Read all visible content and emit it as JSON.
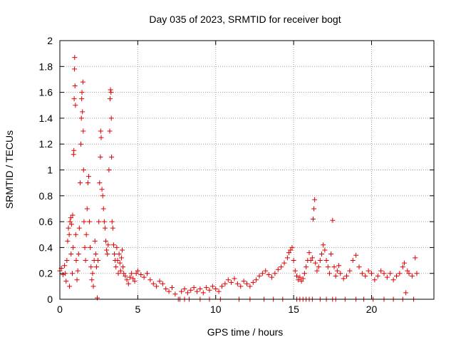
{
  "chart_data": {
    "type": "scatter",
    "title": "Day 035 of 2023, SRMTID for receiver bogt",
    "xlabel": "GPS time / hours",
    "ylabel": "SRMTID / TECUs",
    "xlim": [
      0,
      24
    ],
    "ylim": [
      0,
      2
    ],
    "x_ticks": [
      0,
      5,
      10,
      15,
      20
    ],
    "x_tick_labels": [
      "0",
      "5",
      "10",
      "15",
      "20"
    ],
    "y_ticks": [
      0,
      0.2,
      0.4,
      0.6,
      0.8,
      1.0,
      1.2,
      1.4,
      1.6,
      1.8,
      2.0
    ],
    "y_tick_labels": [
      "0",
      "0.2",
      "0.4",
      "0.6",
      "0.8",
      "1",
      "1.2",
      "1.4",
      "1.6",
      "1.8",
      "2"
    ],
    "grid": true,
    "marker": "+",
    "color": "#e00000",
    "series": [
      {
        "name": "SRMTID",
        "points": [
          [
            0.0,
            0.22
          ],
          [
            0.1,
            0.24
          ],
          [
            0.2,
            0.19
          ],
          [
            0.3,
            0.26
          ],
          [
            0.35,
            0.2
          ],
          [
            0.4,
            0.14
          ],
          [
            0.45,
            0.3
          ],
          [
            0.5,
            0.45
          ],
          [
            0.55,
            0.55
          ],
          [
            0.6,
            0.5
          ],
          [
            0.62,
            0.1
          ],
          [
            0.65,
            0.6
          ],
          [
            0.7,
            0.63
          ],
          [
            0.72,
            0.35
          ],
          [
            0.75,
            0.58
          ],
          [
            0.8,
            0.2
          ],
          [
            0.82,
            0.65
          ],
          [
            0.85,
            0.4
          ],
          [
            0.88,
            1.12
          ],
          [
            0.9,
            1.15
          ],
          [
            0.92,
            1.55
          ],
          [
            0.94,
            1.78
          ],
          [
            0.95,
            1.87
          ],
          [
            0.97,
            1.65
          ],
          [
            1.0,
            1.5
          ],
          [
            1.02,
            0.5
          ],
          [
            1.05,
            0.3
          ],
          [
            1.1,
            0.15
          ],
          [
            1.15,
            0.22
          ],
          [
            1.2,
            0.35
          ],
          [
            1.25,
            0.55
          ],
          [
            1.3,
            0.9
          ],
          [
            1.35,
            1.2
          ],
          [
            1.38,
            1.4
          ],
          [
            1.4,
            1.55
          ],
          [
            1.42,
            1.6
          ],
          [
            1.45,
            1.45
          ],
          [
            1.48,
            1.68
          ],
          [
            1.5,
            1.3
          ],
          [
            1.52,
            1.0
          ],
          [
            1.55,
            0.6
          ],
          [
            1.6,
            0.4
          ],
          [
            1.65,
            0.3
          ],
          [
            1.7,
            0.5
          ],
          [
            1.75,
            0.7
          ],
          [
            1.8,
            0.9
          ],
          [
            1.85,
            0.95
          ],
          [
            1.9,
            0.6
          ],
          [
            1.95,
            0.4
          ],
          [
            2.0,
            0.25
          ],
          [
            2.05,
            0.15
          ],
          [
            2.1,
            0.2
          ],
          [
            2.15,
            0.1
          ],
          [
            2.2,
            0.3
          ],
          [
            2.25,
            0.45
          ],
          [
            2.3,
            0.35
          ],
          [
            2.35,
            0.25
          ],
          [
            2.4,
            0.01
          ],
          [
            2.45,
            0.3
          ],
          [
            2.5,
            0.6
          ],
          [
            2.55,
            0.9
          ],
          [
            2.6,
            1.1
          ],
          [
            2.62,
            1.3
          ],
          [
            2.65,
            1.25
          ],
          [
            2.7,
            0.85
          ],
          [
            2.75,
            0.8
          ],
          [
            2.8,
            0.7
          ],
          [
            2.85,
            0.6
          ],
          [
            2.9,
            0.55
          ],
          [
            2.95,
            0.45
          ],
          [
            3.0,
            0.38
          ],
          [
            3.05,
            0.35
          ],
          [
            3.1,
            0.42
          ],
          [
            3.15,
            1.0
          ],
          [
            3.2,
            1.3
          ],
          [
            3.22,
            1.55
          ],
          [
            3.25,
            1.62
          ],
          [
            3.28,
            1.6
          ],
          [
            3.3,
            1.4
          ],
          [
            3.32,
            1.1
          ],
          [
            3.35,
            0.6
          ],
          [
            3.4,
            0.55
          ],
          [
            3.45,
            0.42
          ],
          [
            3.5,
            0.35
          ],
          [
            3.55,
            0.3
          ],
          [
            3.6,
            0.25
          ],
          [
            3.65,
            0.4
          ],
          [
            3.7,
            0.3
          ],
          [
            3.75,
            0.2
          ],
          [
            3.8,
            0.35
          ],
          [
            3.85,
            0.28
          ],
          [
            3.9,
            0.22
          ],
          [
            3.95,
            0.32
          ],
          [
            4.0,
            0.38
          ],
          [
            4.05,
            0.25
          ],
          [
            4.1,
            0.2
          ],
          [
            4.2,
            0.18
          ],
          [
            4.3,
            0.15
          ],
          [
            4.4,
            0.12
          ],
          [
            4.5,
            0.17
          ],
          [
            4.6,
            0.2
          ],
          [
            4.7,
            0.16
          ],
          [
            4.8,
            0.14
          ],
          [
            4.9,
            0.2
          ],
          [
            5.0,
            0.22
          ],
          [
            5.2,
            0.19
          ],
          [
            5.4,
            0.17
          ],
          [
            5.6,
            0.2
          ],
          [
            5.8,
            0.15
          ],
          [
            6.0,
            0.12
          ],
          [
            6.2,
            0.1
          ],
          [
            6.4,
            0.14
          ],
          [
            6.6,
            0.12
          ],
          [
            6.8,
            0.08
          ],
          [
            7.0,
            0.06
          ],
          [
            7.2,
            0.09
          ],
          [
            7.4,
            0.04
          ],
          [
            7.6,
            0.0
          ],
          [
            7.8,
            0.06
          ],
          [
            8.0,
            0.08
          ],
          [
            8.2,
            0.05
          ],
          [
            8.4,
            0.07
          ],
          [
            8.6,
            0.09
          ],
          [
            8.8,
            0.06
          ],
          [
            9.0,
            0.08
          ],
          [
            9.2,
            0.05
          ],
          [
            9.4,
            0.09
          ],
          [
            9.6,
            0.07
          ],
          [
            9.8,
            0.1
          ],
          [
            10.0,
            0.08
          ],
          [
            10.2,
            0.06
          ],
          [
            10.4,
            0.1
          ],
          [
            10.6,
            0.12
          ],
          [
            10.8,
            0.15
          ],
          [
            11.0,
            0.13
          ],
          [
            11.2,
            0.16
          ],
          [
            11.4,
            0.12
          ],
          [
            11.6,
            0.1
          ],
          [
            11.8,
            0.14
          ],
          [
            12.0,
            0.12
          ],
          [
            12.2,
            0.1
          ],
          [
            12.4,
            0.13
          ],
          [
            12.6,
            0.15
          ],
          [
            12.8,
            0.18
          ],
          [
            13.0,
            0.2
          ],
          [
            13.2,
            0.22
          ],
          [
            13.4,
            0.19
          ],
          [
            13.6,
            0.17
          ],
          [
            13.8,
            0.2
          ],
          [
            14.0,
            0.23
          ],
          [
            14.2,
            0.25
          ],
          [
            14.4,
            0.28
          ],
          [
            14.6,
            0.32
          ],
          [
            14.7,
            0.36
          ],
          [
            14.8,
            0.38
          ],
          [
            14.9,
            0.4
          ],
          [
            15.0,
            0.3
          ],
          [
            15.1,
            0.22
          ],
          [
            15.2,
            0.18
          ],
          [
            15.3,
            0.15
          ],
          [
            15.4,
            0.17
          ],
          [
            15.5,
            0.14
          ],
          [
            15.6,
            0.16
          ],
          [
            15.7,
            0.2
          ],
          [
            15.8,
            0.25
          ],
          [
            15.9,
            0.3
          ],
          [
            16.0,
            0.36
          ],
          [
            16.1,
            0.3
          ],
          [
            16.2,
            0.32
          ],
          [
            16.25,
            0.62
          ],
          [
            16.3,
            0.7
          ],
          [
            16.35,
            0.77
          ],
          [
            16.4,
            0.28
          ],
          [
            16.5,
            0.22
          ],
          [
            16.6,
            0.25
          ],
          [
            16.7,
            0.3
          ],
          [
            16.8,
            0.35
          ],
          [
            16.9,
            0.42
          ],
          [
            17.0,
            0.38
          ],
          [
            17.1,
            0.3
          ],
          [
            17.2,
            0.25
          ],
          [
            17.3,
            0.2
          ],
          [
            17.4,
            0.35
          ],
          [
            17.5,
            0.61
          ],
          [
            17.6,
            0.25
          ],
          [
            17.7,
            0.18
          ],
          [
            17.8,
            0.22
          ],
          [
            17.9,
            0.26
          ],
          [
            18.0,
            0.2
          ],
          [
            18.2,
            0.16
          ],
          [
            18.4,
            0.18
          ],
          [
            18.6,
            0.22
          ],
          [
            18.8,
            0.3
          ],
          [
            19.0,
            0.34
          ],
          [
            19.2,
            0.25
          ],
          [
            19.4,
            0.2
          ],
          [
            19.6,
            0.18
          ],
          [
            19.8,
            0.22
          ],
          [
            20.0,
            0.2
          ],
          [
            20.2,
            0.15
          ],
          [
            20.4,
            0.18
          ],
          [
            20.6,
            0.22
          ],
          [
            20.8,
            0.2
          ],
          [
            21.0,
            0.17
          ],
          [
            21.2,
            0.2
          ],
          [
            21.4,
            0.15
          ],
          [
            21.6,
            0.18
          ],
          [
            21.8,
            0.2
          ],
          [
            22.0,
            0.25
          ],
          [
            22.1,
            0.28
          ],
          [
            22.2,
            0.05
          ],
          [
            22.3,
            0.22
          ],
          [
            22.4,
            0.2
          ],
          [
            22.6,
            0.18
          ],
          [
            22.8,
            0.32
          ],
          [
            22.9,
            0.2
          ],
          [
            7.7,
            0.0
          ],
          [
            8.0,
            0.0
          ],
          [
            8.3,
            0.0
          ],
          [
            9.0,
            0.0
          ],
          [
            9.6,
            0.0
          ],
          [
            10.3,
            0.0
          ],
          [
            11.5,
            0.0
          ],
          [
            12.2,
            0.0
          ],
          [
            13.1,
            0.0
          ],
          [
            13.7,
            0.0
          ],
          [
            14.3,
            0.0
          ],
          [
            15.2,
            0.0
          ],
          [
            15.4,
            0.0
          ],
          [
            15.6,
            0.0
          ],
          [
            15.8,
            0.0
          ],
          [
            16.0,
            0.0
          ],
          [
            16.2,
            0.0
          ],
          [
            16.7,
            0.0
          ],
          [
            17.1,
            0.0
          ],
          [
            17.5,
            0.0
          ],
          [
            17.7,
            0.0
          ],
          [
            18.3,
            0.0
          ],
          [
            19.0,
            0.0
          ],
          [
            19.5,
            0.0
          ],
          [
            20.1,
            0.0
          ],
          [
            20.8,
            0.0
          ],
          [
            21.4,
            0.0
          ],
          [
            22.0,
            0.0
          ],
          [
            22.7,
            0.0
          ]
        ]
      }
    ]
  }
}
